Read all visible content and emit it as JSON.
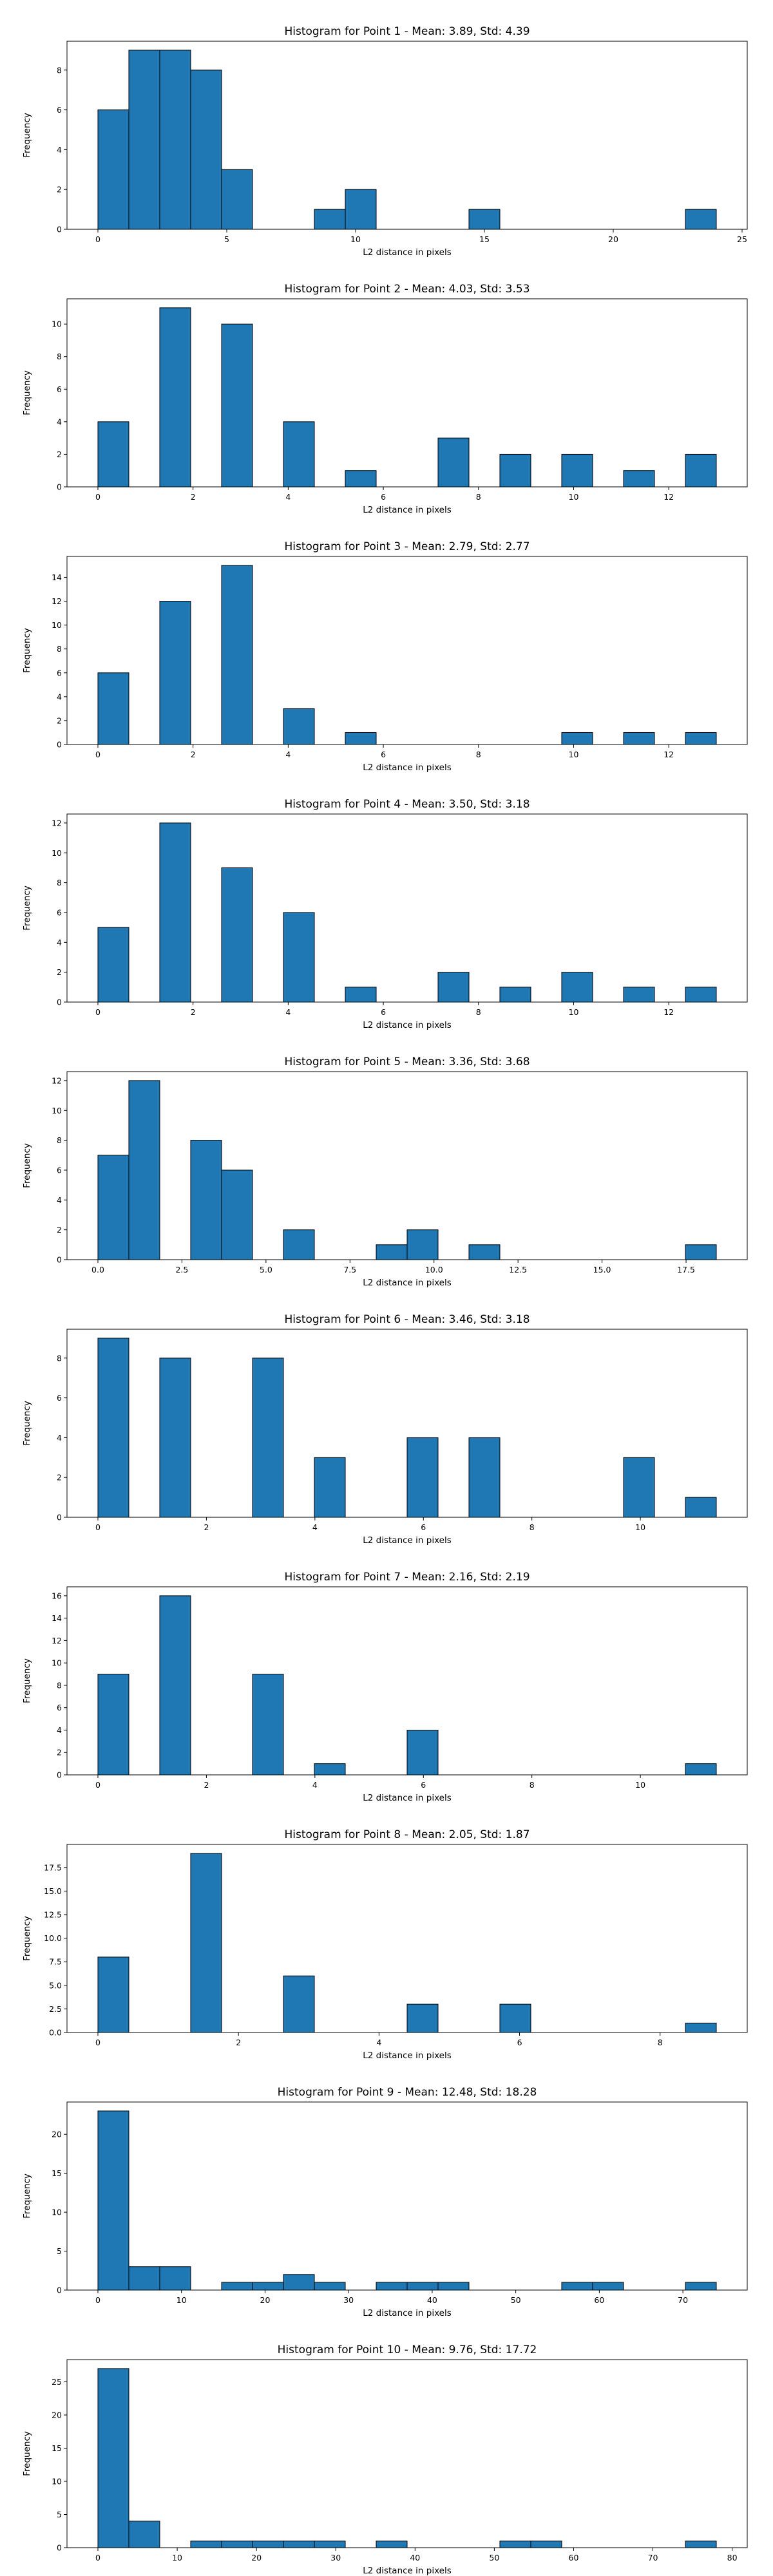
{
  "chart_data": [
    {
      "type": "bar",
      "title": "Histogram for Point 1 - Mean: 3.89, Std: 4.39",
      "xlabel": "L2 distance in pixels",
      "ylabel": "Frequency",
      "xlim": [
        -1.2,
        25.2
      ],
      "ylim": [
        0,
        9.45
      ],
      "xticks": [
        0,
        5,
        10,
        15,
        20,
        25
      ],
      "xtick_labels": [
        "0",
        "5",
        "10",
        "15",
        "20",
        "25"
      ],
      "yticks": [
        0,
        2,
        4,
        6,
        8
      ],
      "ytick_labels": [
        "0",
        "2",
        "4",
        "6",
        "8"
      ],
      "bin_edges": [
        0,
        1.2,
        2.4,
        3.6,
        4.8,
        6.0,
        7.2,
        8.4,
        9.6,
        10.8,
        12.0,
        13.2,
        14.4,
        15.6,
        16.8,
        18.0,
        19.2,
        20.4,
        21.6,
        22.8,
        24.0
      ],
      "values": [
        6,
        9,
        9,
        8,
        3,
        0,
        0,
        1,
        2,
        0,
        0,
        0,
        1,
        0,
        0,
        0,
        0,
        0,
        0,
        1
      ]
    },
    {
      "type": "bar",
      "title": "Histogram for Point 2 - Mean: 4.03, Std: 3.53",
      "xlabel": "L2 distance in pixels",
      "ylabel": "Frequency",
      "xlim": [
        -0.65,
        13.65
      ],
      "ylim": [
        0,
        11.55
      ],
      "xticks": [
        0,
        2,
        4,
        6,
        8,
        10,
        12
      ],
      "xtick_labels": [
        "0",
        "2",
        "4",
        "6",
        "8",
        "10",
        "12"
      ],
      "yticks": [
        0,
        2,
        4,
        6,
        8,
        10
      ],
      "ytick_labels": [
        "0",
        "2",
        "4",
        "6",
        "8",
        "10"
      ],
      "bin_edges": [
        0,
        0.65,
        1.3,
        1.95,
        2.6,
        3.25,
        3.9,
        4.55,
        5.2,
        5.85,
        6.5,
        7.15,
        7.8,
        8.45,
        9.1,
        9.75,
        10.4,
        11.05,
        11.7,
        12.35,
        13.0
      ],
      "values": [
        4,
        0,
        11,
        0,
        10,
        0,
        4,
        0,
        1,
        0,
        0,
        3,
        0,
        2,
        0,
        2,
        0,
        1,
        0,
        2
      ]
    },
    {
      "type": "bar",
      "title": "Histogram for Point 3 - Mean: 2.79, Std: 2.77",
      "xlabel": "L2 distance in pixels",
      "ylabel": "Frequency",
      "xlim": [
        -0.65,
        13.65
      ],
      "ylim": [
        0,
        15.75
      ],
      "xticks": [
        0,
        2,
        4,
        6,
        8,
        10,
        12
      ],
      "xtick_labels": [
        "0",
        "2",
        "4",
        "6",
        "8",
        "10",
        "12"
      ],
      "yticks": [
        0,
        2,
        4,
        6,
        8,
        10,
        12,
        14
      ],
      "ytick_labels": [
        "0",
        "2",
        "4",
        "6",
        "8",
        "10",
        "12",
        "14"
      ],
      "bin_edges": [
        0,
        0.65,
        1.3,
        1.95,
        2.6,
        3.25,
        3.9,
        4.55,
        5.2,
        5.85,
        6.5,
        7.15,
        7.8,
        8.45,
        9.1,
        9.75,
        10.4,
        11.05,
        11.7,
        12.35,
        13.0
      ],
      "values": [
        6,
        0,
        12,
        0,
        15,
        0,
        3,
        0,
        1,
        0,
        0,
        0,
        0,
        0,
        0,
        1,
        0,
        1,
        0,
        1
      ]
    },
    {
      "type": "bar",
      "title": "Histogram for Point 4 - Mean: 3.50, Std: 3.18",
      "xlabel": "L2 distance in pixels",
      "ylabel": "Frequency",
      "xlim": [
        -0.65,
        13.65
      ],
      "ylim": [
        0,
        12.6
      ],
      "xticks": [
        0,
        2,
        4,
        6,
        8,
        10,
        12
      ],
      "xtick_labels": [
        "0",
        "2",
        "4",
        "6",
        "8",
        "10",
        "12"
      ],
      "yticks": [
        0,
        2,
        4,
        6,
        8,
        10,
        12
      ],
      "ytick_labels": [
        "0",
        "2",
        "4",
        "6",
        "8",
        "10",
        "12"
      ],
      "bin_edges": [
        0,
        0.65,
        1.3,
        1.95,
        2.6,
        3.25,
        3.9,
        4.55,
        5.2,
        5.85,
        6.5,
        7.15,
        7.8,
        8.45,
        9.1,
        9.75,
        10.4,
        11.05,
        11.7,
        12.35,
        13.0
      ],
      "values": [
        5,
        0,
        12,
        0,
        9,
        0,
        6,
        0,
        1,
        0,
        0,
        2,
        0,
        1,
        0,
        2,
        0,
        1,
        0,
        1
      ]
    },
    {
      "type": "bar",
      "title": "Histogram for Point 5 - Mean: 3.36, Std: 3.68",
      "xlabel": "L2 distance in pixels",
      "ylabel": "Frequency",
      "xlim": [
        -0.92,
        19.32
      ],
      "ylim": [
        0,
        12.6
      ],
      "xticks": [
        0,
        2.5,
        5,
        7.5,
        10,
        12.5,
        15,
        17.5
      ],
      "xtick_labels": [
        "0.0",
        "2.5",
        "5.0",
        "7.5",
        "10.0",
        "12.5",
        "15.0",
        "17.5"
      ],
      "yticks": [
        0,
        2,
        4,
        6,
        8,
        10,
        12
      ],
      "ytick_labels": [
        "0",
        "2",
        "4",
        "6",
        "8",
        "10",
        "12"
      ],
      "bin_edges": [
        0,
        0.92,
        1.84,
        2.76,
        3.68,
        4.6,
        5.52,
        6.44,
        7.36,
        8.28,
        9.2,
        10.12,
        11.04,
        11.96,
        12.88,
        13.8,
        14.72,
        15.64,
        16.56,
        17.48,
        18.4
      ],
      "values": [
        7,
        12,
        0,
        8,
        6,
        0,
        2,
        0,
        0,
        1,
        2,
        0,
        1,
        0,
        0,
        0,
        0,
        0,
        0,
        1
      ]
    },
    {
      "type": "bar",
      "title": "Histogram for Point 6 - Mean: 3.46, Std: 3.18",
      "xlabel": "L2 distance in pixels",
      "ylabel": "Frequency",
      "xlim": [
        -0.57,
        11.97
      ],
      "ylim": [
        0,
        9.45
      ],
      "xticks": [
        0,
        2,
        4,
        6,
        8,
        10
      ],
      "xtick_labels": [
        "0",
        "2",
        "4",
        "6",
        "8",
        "10"
      ],
      "yticks": [
        0,
        2,
        4,
        6,
        8
      ],
      "ytick_labels": [
        "0",
        "2",
        "4",
        "6",
        "8"
      ],
      "bin_edges": [
        0,
        0.57,
        1.14,
        1.71,
        2.28,
        2.85,
        3.42,
        3.99,
        4.56,
        5.13,
        5.7,
        6.27,
        6.84,
        7.41,
        7.98,
        8.55,
        9.12,
        9.69,
        10.26,
        10.83,
        11.4
      ],
      "values": [
        9,
        0,
        8,
        0,
        0,
        8,
        0,
        3,
        0,
        0,
        4,
        0,
        4,
        0,
        0,
        0,
        0,
        3,
        0,
        1
      ]
    },
    {
      "type": "bar",
      "title": "Histogram for Point 7 - Mean: 2.16, Std: 2.19",
      "xlabel": "L2 distance in pixels",
      "ylabel": "Frequency",
      "xlim": [
        -0.57,
        11.97
      ],
      "ylim": [
        0,
        16.8
      ],
      "xticks": [
        0,
        2,
        4,
        6,
        8,
        10
      ],
      "xtick_labels": [
        "0",
        "2",
        "4",
        "6",
        "8",
        "10"
      ],
      "yticks": [
        0,
        2,
        4,
        6,
        8,
        10,
        12,
        14,
        16
      ],
      "ytick_labels": [
        "0",
        "2",
        "4",
        "6",
        "8",
        "10",
        "12",
        "14",
        "16"
      ],
      "bin_edges": [
        0,
        0.57,
        1.14,
        1.71,
        2.28,
        2.85,
        3.42,
        3.99,
        4.56,
        5.13,
        5.7,
        6.27,
        6.84,
        7.41,
        7.98,
        8.55,
        9.12,
        9.69,
        10.26,
        10.83,
        11.4
      ],
      "values": [
        9,
        0,
        16,
        0,
        0,
        9,
        0,
        1,
        0,
        0,
        4,
        0,
        0,
        0,
        0,
        0,
        0,
        0,
        0,
        1
      ]
    },
    {
      "type": "bar",
      "title": "Histogram for Point 8 - Mean: 2.05, Std: 1.87",
      "xlabel": "L2 distance in pixels",
      "ylabel": "Frequency",
      "xlim": [
        -0.44,
        9.24
      ],
      "ylim": [
        0,
        19.95
      ],
      "xticks": [
        0,
        2,
        4,
        6,
        8
      ],
      "xtick_labels": [
        "0",
        "2",
        "4",
        "6",
        "8"
      ],
      "yticks": [
        0,
        2.5,
        5,
        7.5,
        10,
        12.5,
        15,
        17.5
      ],
      "ytick_labels": [
        "0.0",
        "2.5",
        "5.0",
        "7.5",
        "10.0",
        "12.5",
        "15.0",
        "17.5"
      ],
      "bin_edges": [
        0,
        0.44,
        0.88,
        1.32,
        1.76,
        2.2,
        2.64,
        3.08,
        3.52,
        3.96,
        4.4,
        4.84,
        5.28,
        5.72,
        6.16,
        6.6,
        7.04,
        7.48,
        7.92,
        8.36,
        8.8
      ],
      "values": [
        8,
        0,
        0,
        19,
        0,
        0,
        6,
        0,
        0,
        0,
        3,
        0,
        0,
        3,
        0,
        0,
        0,
        0,
        0,
        1
      ]
    },
    {
      "type": "bar",
      "title": "Histogram for Point 9 - Mean: 12.48, Std: 18.28",
      "xlabel": "L2 distance in pixels",
      "ylabel": "Frequency",
      "xlim": [
        -3.7,
        77.7
      ],
      "ylim": [
        0,
        24.15
      ],
      "xticks": [
        0,
        10,
        20,
        30,
        40,
        50,
        60,
        70
      ],
      "xtick_labels": [
        "0",
        "10",
        "20",
        "30",
        "40",
        "50",
        "60",
        "70"
      ],
      "yticks": [
        0,
        5,
        10,
        15,
        20
      ],
      "ytick_labels": [
        "0",
        "5",
        "10",
        "15",
        "20"
      ],
      "bin_edges": [
        0,
        3.7,
        7.4,
        11.1,
        14.8,
        18.5,
        22.2,
        25.9,
        29.6,
        33.3,
        37.0,
        40.7,
        44.4,
        48.1,
        51.8,
        55.5,
        59.2,
        62.9,
        66.6,
        70.3,
        74.0
      ],
      "values": [
        23,
        3,
        3,
        0,
        1,
        1,
        2,
        1,
        0,
        1,
        1,
        1,
        0,
        0,
        0,
        1,
        1,
        0,
        0,
        1
      ]
    },
    {
      "type": "bar",
      "title": "Histogram for Point 10 - Mean: 9.76, Std: 17.72",
      "xlabel": "L2 distance in pixels",
      "ylabel": "Frequency",
      "xlim": [
        -3.9,
        81.9
      ],
      "ylim": [
        0,
        28.35
      ],
      "xticks": [
        0,
        10,
        20,
        30,
        40,
        50,
        60,
        70,
        80
      ],
      "xtick_labels": [
        "0",
        "10",
        "20",
        "30",
        "40",
        "50",
        "60",
        "70",
        "80"
      ],
      "yticks": [
        0,
        5,
        10,
        15,
        20,
        25
      ],
      "ytick_labels": [
        "0",
        "5",
        "10",
        "15",
        "20",
        "25"
      ],
      "bin_edges": [
        0,
        3.9,
        7.8,
        11.7,
        15.6,
        19.5,
        23.4,
        27.3,
        31.2,
        35.1,
        39.0,
        42.9,
        46.8,
        50.7,
        54.6,
        58.5,
        62.4,
        66.3,
        70.2,
        74.1,
        78.0
      ],
      "values": [
        27,
        4,
        0,
        1,
        1,
        1,
        1,
        1,
        0,
        1,
        0,
        0,
        0,
        1,
        1,
        0,
        0,
        0,
        0,
        1
      ]
    }
  ]
}
